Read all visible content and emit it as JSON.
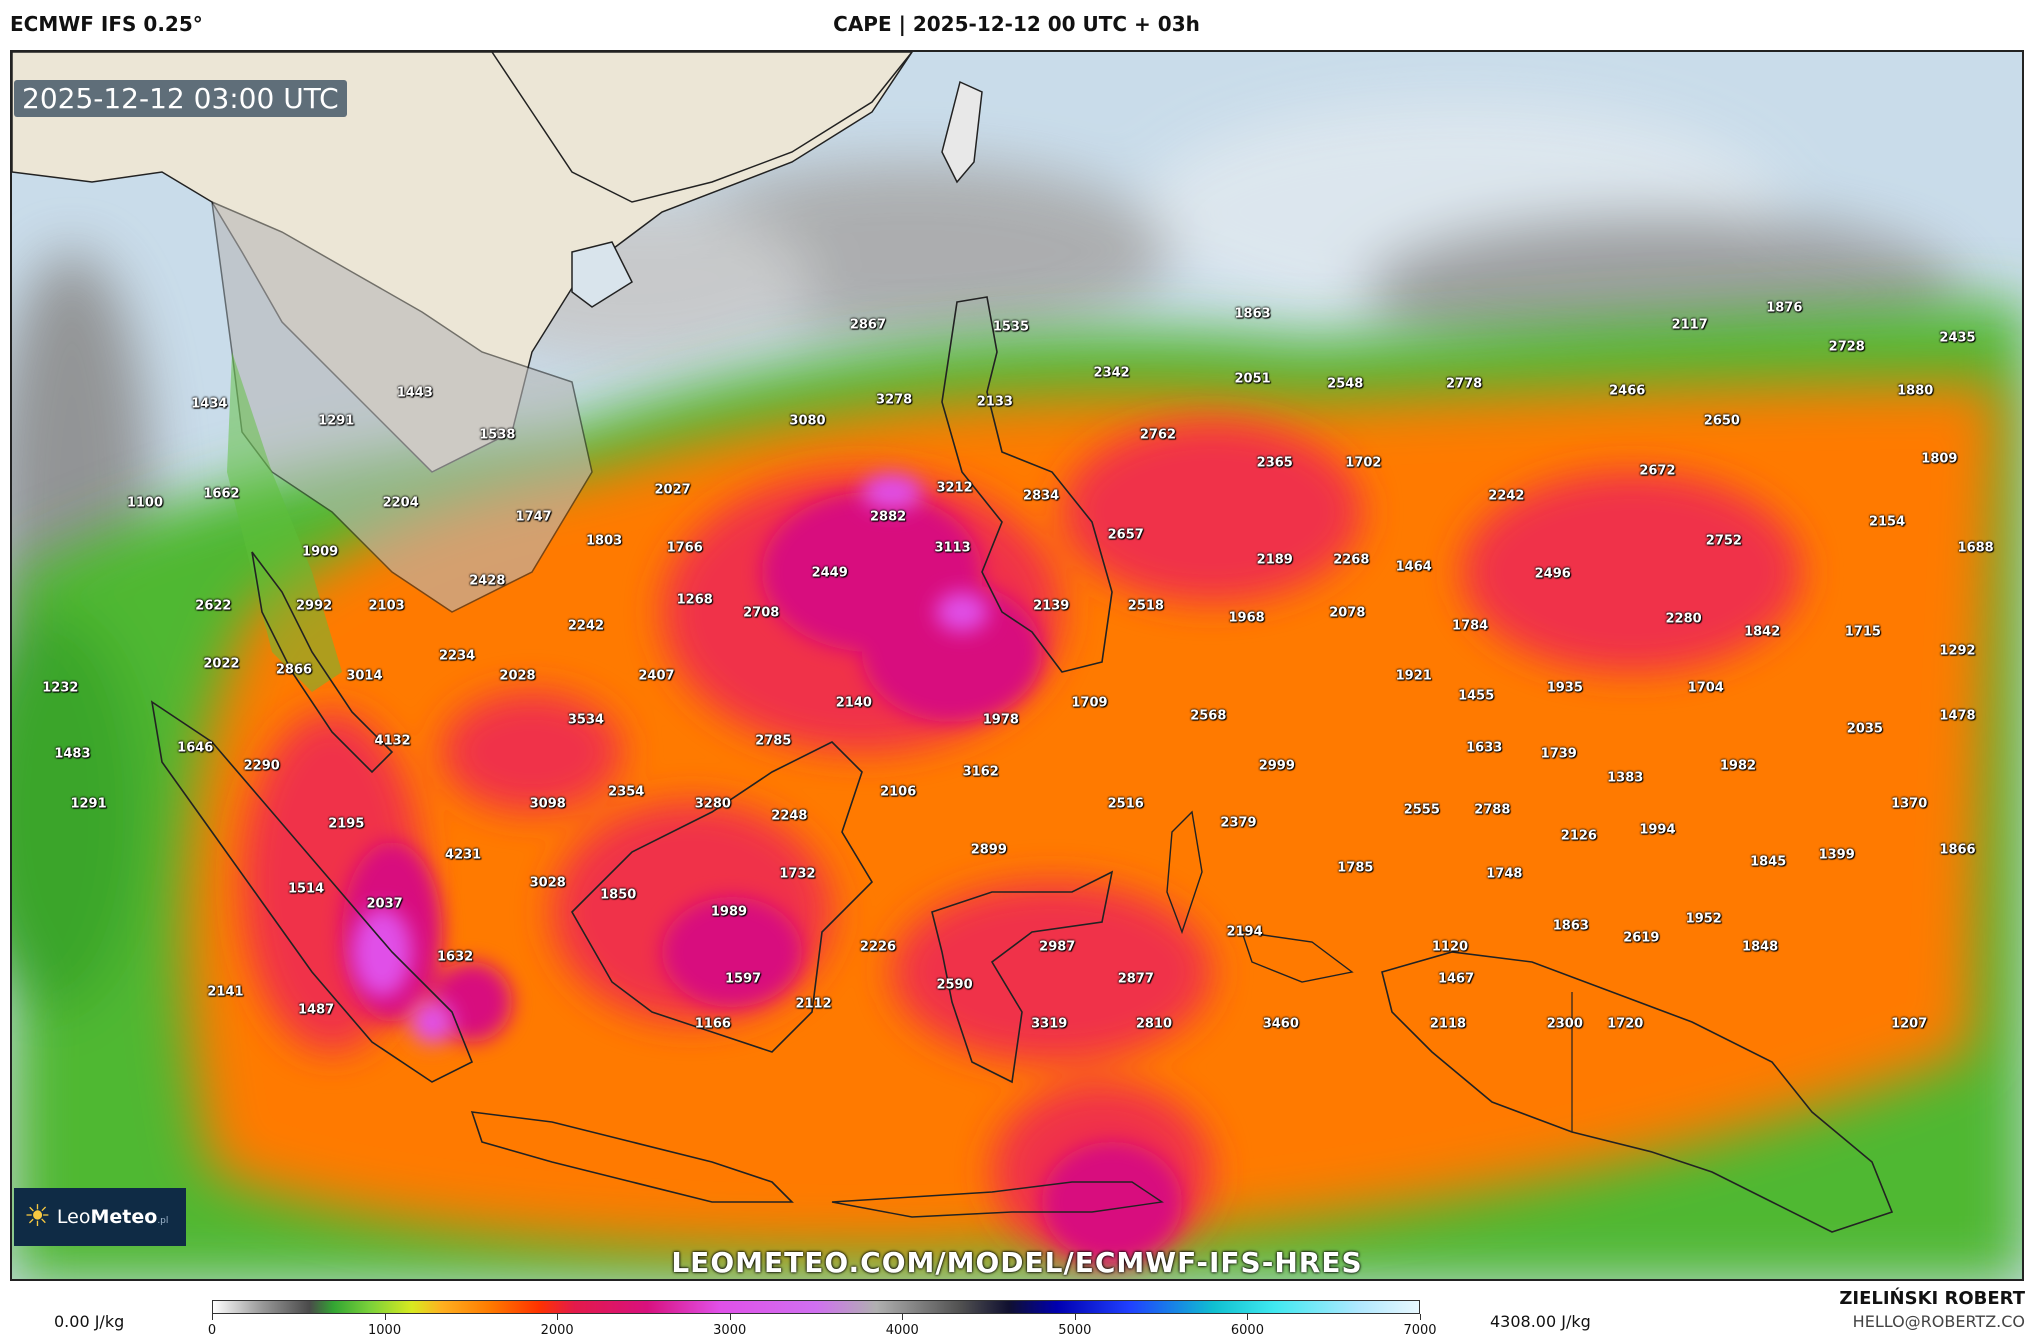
{
  "header": {
    "model": "ECMWF IFS 0.25°",
    "title": "CAPE | 2025-12-12 00 UTC + 03h"
  },
  "map": {
    "timestamp": "2025-12-12 03:00 UTC",
    "watermark": "LEOMETEO.COM/MODEL/ECMWF-IFS-HRES",
    "logo": {
      "brand_light": "Leo",
      "brand_bold": "Meteo",
      "brand_suffix": ".pl"
    },
    "colors": {
      "land_dry": "#ece6d6",
      "sea_low": "#c9dcea",
      "gray_low": "#9e9e9e",
      "green": "#4fb832",
      "orange": "#ff7a00",
      "red": "#f0304a",
      "magenta": "#d8117e",
      "pink": "#e050e8"
    },
    "values": [
      {
        "v": "2867",
        "x": 0.425,
        "y": 0.222
      },
      {
        "v": "1535",
        "x": 0.496,
        "y": 0.223
      },
      {
        "v": "1863",
        "x": 0.616,
        "y": 0.213
      },
      {
        "v": "2117",
        "x": 0.833,
        "y": 0.222
      },
      {
        "v": "1876",
        "x": 0.88,
        "y": 0.208
      },
      {
        "v": "2728",
        "x": 0.911,
        "y": 0.24
      },
      {
        "v": "2435",
        "x": 0.966,
        "y": 0.232
      },
      {
        "v": "1434",
        "x": 0.098,
        "y": 0.286
      },
      {
        "v": "1291",
        "x": 0.161,
        "y": 0.3
      },
      {
        "v": "1443",
        "x": 0.2,
        "y": 0.277
      },
      {
        "v": "3278",
        "x": 0.438,
        "y": 0.283
      },
      {
        "v": "2133",
        "x": 0.488,
        "y": 0.284
      },
      {
        "v": "2342",
        "x": 0.546,
        "y": 0.261
      },
      {
        "v": "2051",
        "x": 0.616,
        "y": 0.266
      },
      {
        "v": "2548",
        "x": 0.662,
        "y": 0.27
      },
      {
        "v": "2778",
        "x": 0.721,
        "y": 0.27
      },
      {
        "v": "2466",
        "x": 0.802,
        "y": 0.275
      },
      {
        "v": "1880",
        "x": 0.945,
        "y": 0.275
      },
      {
        "v": "1538",
        "x": 0.241,
        "y": 0.311
      },
      {
        "v": "3080",
        "x": 0.395,
        "y": 0.3
      },
      {
        "v": "2762",
        "x": 0.569,
        "y": 0.311
      },
      {
        "v": "2650",
        "x": 0.849,
        "y": 0.3
      },
      {
        "v": "2365",
        "x": 0.627,
        "y": 0.334
      },
      {
        "v": "1702",
        "x": 0.671,
        "y": 0.334
      },
      {
        "v": "2672",
        "x": 0.817,
        "y": 0.34
      },
      {
        "v": "1809",
        "x": 0.957,
        "y": 0.331
      },
      {
        "v": "1100",
        "x": 0.066,
        "y": 0.366
      },
      {
        "v": "1662",
        "x": 0.104,
        "y": 0.359
      },
      {
        "v": "2204",
        "x": 0.193,
        "y": 0.366
      },
      {
        "v": "2027",
        "x": 0.328,
        "y": 0.356
      },
      {
        "v": "3212",
        "x": 0.468,
        "y": 0.354
      },
      {
        "v": "2834",
        "x": 0.511,
        "y": 0.361
      },
      {
        "v": "2242",
        "x": 0.742,
        "y": 0.361
      },
      {
        "v": "1747",
        "x": 0.259,
        "y": 0.378
      },
      {
        "v": "2882",
        "x": 0.435,
        "y": 0.378
      },
      {
        "v": "2154",
        "x": 0.931,
        "y": 0.382
      },
      {
        "v": "1909",
        "x": 0.153,
        "y": 0.406
      },
      {
        "v": "1803",
        "x": 0.294,
        "y": 0.397
      },
      {
        "v": "1766",
        "x": 0.334,
        "y": 0.403
      },
      {
        "v": "3113",
        "x": 0.467,
        "y": 0.403
      },
      {
        "v": "2657",
        "x": 0.553,
        "y": 0.392
      },
      {
        "v": "2189",
        "x": 0.627,
        "y": 0.413
      },
      {
        "v": "2268",
        "x": 0.665,
        "y": 0.413
      },
      {
        "v": "1464",
        "x": 0.696,
        "y": 0.418
      },
      {
        "v": "2752",
        "x": 0.85,
        "y": 0.397
      },
      {
        "v": "1688",
        "x": 0.975,
        "y": 0.403
      },
      {
        "v": "2428",
        "x": 0.236,
        "y": 0.43
      },
      {
        "v": "2449",
        "x": 0.406,
        "y": 0.423
      },
      {
        "v": "2496",
        "x": 0.765,
        "y": 0.424
      },
      {
        "v": "2622",
        "x": 0.1,
        "y": 0.45
      },
      {
        "v": "2992",
        "x": 0.15,
        "y": 0.45
      },
      {
        "v": "2103",
        "x": 0.186,
        "y": 0.45
      },
      {
        "v": "1268",
        "x": 0.339,
        "y": 0.445
      },
      {
        "v": "2708",
        "x": 0.372,
        "y": 0.456
      },
      {
        "v": "2139",
        "x": 0.516,
        "y": 0.45
      },
      {
        "v": "2518",
        "x": 0.563,
        "y": 0.45
      },
      {
        "v": "1968",
        "x": 0.613,
        "y": 0.46
      },
      {
        "v": "2078",
        "x": 0.663,
        "y": 0.456
      },
      {
        "v": "2242",
        "x": 0.285,
        "y": 0.466
      },
      {
        "v": "1784",
        "x": 0.724,
        "y": 0.466
      },
      {
        "v": "2280",
        "x": 0.83,
        "y": 0.461
      },
      {
        "v": "1842",
        "x": 0.869,
        "y": 0.471
      },
      {
        "v": "1715",
        "x": 0.919,
        "y": 0.471
      },
      {
        "v": "2022",
        "x": 0.104,
        "y": 0.497
      },
      {
        "v": "2234",
        "x": 0.221,
        "y": 0.491
      },
      {
        "v": "1292",
        "x": 0.966,
        "y": 0.487
      },
      {
        "v": "2866",
        "x": 0.14,
        "y": 0.502
      },
      {
        "v": "3014",
        "x": 0.175,
        "y": 0.507
      },
      {
        "v": "2028",
        "x": 0.251,
        "y": 0.507
      },
      {
        "v": "2407",
        "x": 0.32,
        "y": 0.507
      },
      {
        "v": "1921",
        "x": 0.696,
        "y": 0.507
      },
      {
        "v": "1232",
        "x": 0.024,
        "y": 0.517
      },
      {
        "v": "1455",
        "x": 0.727,
        "y": 0.523
      },
      {
        "v": "1935",
        "x": 0.771,
        "y": 0.517
      },
      {
        "v": "1704",
        "x": 0.841,
        "y": 0.517
      },
      {
        "v": "2140",
        "x": 0.418,
        "y": 0.529
      },
      {
        "v": "1709",
        "x": 0.535,
        "y": 0.529
      },
      {
        "v": "3534",
        "x": 0.285,
        "y": 0.543
      },
      {
        "v": "1978",
        "x": 0.491,
        "y": 0.543
      },
      {
        "v": "2568",
        "x": 0.594,
        "y": 0.539
      },
      {
        "v": "1478",
        "x": 0.966,
        "y": 0.539
      },
      {
        "v": "2035",
        "x": 0.92,
        "y": 0.55
      },
      {
        "v": "4132",
        "x": 0.189,
        "y": 0.56
      },
      {
        "v": "2785",
        "x": 0.378,
        "y": 0.56
      },
      {
        "v": "1646",
        "x": 0.091,
        "y": 0.565
      },
      {
        "v": "1633",
        "x": 0.731,
        "y": 0.565
      },
      {
        "v": "1483",
        "x": 0.03,
        "y": 0.57
      },
      {
        "v": "1739",
        "x": 0.768,
        "y": 0.57
      },
      {
        "v": "2290",
        "x": 0.124,
        "y": 0.58
      },
      {
        "v": "3162",
        "x": 0.481,
        "y": 0.585
      },
      {
        "v": "2999",
        "x": 0.628,
        "y": 0.58
      },
      {
        "v": "1982",
        "x": 0.857,
        "y": 0.58
      },
      {
        "v": "1383",
        "x": 0.801,
        "y": 0.59
      },
      {
        "v": "2354",
        "x": 0.305,
        "y": 0.601
      },
      {
        "v": "2106",
        "x": 0.44,
        "y": 0.601
      },
      {
        "v": "1291",
        "x": 0.038,
        "y": 0.611
      },
      {
        "v": "3098",
        "x": 0.266,
        "y": 0.611
      },
      {
        "v": "3280",
        "x": 0.348,
        "y": 0.611
      },
      {
        "v": "2516",
        "x": 0.553,
        "y": 0.611
      },
      {
        "v": "1370",
        "x": 0.942,
        "y": 0.611
      },
      {
        "v": "2555",
        "x": 0.7,
        "y": 0.616
      },
      {
        "v": "2788",
        "x": 0.735,
        "y": 0.616
      },
      {
        "v": "2248",
        "x": 0.386,
        "y": 0.621
      },
      {
        "v": "2379",
        "x": 0.609,
        "y": 0.626
      },
      {
        "v": "2195",
        "x": 0.166,
        "y": 0.627
      },
      {
        "v": "1994",
        "x": 0.817,
        "y": 0.632
      },
      {
        "v": "2126",
        "x": 0.778,
        "y": 0.637
      },
      {
        "v": "4231",
        "x": 0.224,
        "y": 0.652
      },
      {
        "v": "2899",
        "x": 0.485,
        "y": 0.648
      },
      {
        "v": "1866",
        "x": 0.966,
        "y": 0.648
      },
      {
        "v": "1399",
        "x": 0.906,
        "y": 0.652
      },
      {
        "v": "1845",
        "x": 0.872,
        "y": 0.658
      },
      {
        "v": "1785",
        "x": 0.667,
        "y": 0.663
      },
      {
        "v": "1514",
        "x": 0.146,
        "y": 0.68
      },
      {
        "v": "1732",
        "x": 0.39,
        "y": 0.668
      },
      {
        "v": "1748",
        "x": 0.741,
        "y": 0.668
      },
      {
        "v": "3028",
        "x": 0.266,
        "y": 0.675
      },
      {
        "v": "1850",
        "x": 0.301,
        "y": 0.685
      },
      {
        "v": "2037",
        "x": 0.185,
        "y": 0.692
      },
      {
        "v": "1989",
        "x": 0.356,
        "y": 0.699
      },
      {
        "v": "1952",
        "x": 0.84,
        "y": 0.704
      },
      {
        "v": "1863",
        "x": 0.774,
        "y": 0.71
      },
      {
        "v": "2194",
        "x": 0.612,
        "y": 0.715
      },
      {
        "v": "2619",
        "x": 0.809,
        "y": 0.72
      },
      {
        "v": "2226",
        "x": 0.43,
        "y": 0.727
      },
      {
        "v": "2987",
        "x": 0.519,
        "y": 0.727
      },
      {
        "v": "1120",
        "x": 0.714,
        "y": 0.727
      },
      {
        "v": "1848",
        "x": 0.868,
        "y": 0.727
      },
      {
        "v": "1632",
        "x": 0.22,
        "y": 0.735
      },
      {
        "v": "1597",
        "x": 0.363,
        "y": 0.753
      },
      {
        "v": "2877",
        "x": 0.558,
        "y": 0.753
      },
      {
        "v": "1467",
        "x": 0.717,
        "y": 0.753
      },
      {
        "v": "2590",
        "x": 0.468,
        "y": 0.758
      },
      {
        "v": "2141",
        "x": 0.106,
        "y": 0.764
      },
      {
        "v": "2112",
        "x": 0.398,
        "y": 0.773
      },
      {
        "v": "1487",
        "x": 0.151,
        "y": 0.778
      },
      {
        "v": "1166",
        "x": 0.348,
        "y": 0.79
      },
      {
        "v": "3319",
        "x": 0.515,
        "y": 0.79
      },
      {
        "v": "2810",
        "x": 0.567,
        "y": 0.79
      },
      {
        "v": "3460",
        "x": 0.63,
        "y": 0.79
      },
      {
        "v": "2118",
        "x": 0.713,
        "y": 0.79
      },
      {
        "v": "2300",
        "x": 0.771,
        "y": 0.79
      },
      {
        "v": "1720",
        "x": 0.801,
        "y": 0.79
      },
      {
        "v": "1207",
        "x": 0.942,
        "y": 0.79
      }
    ]
  },
  "legend": {
    "min_label": "0.00 J/kg",
    "max_label": "4308.00 J/kg",
    "ticks": [
      "0",
      "1000",
      "2000",
      "3000",
      "4000",
      "5000",
      "6000",
      "7000"
    ]
  },
  "footer": {
    "author": "ZIELIŃSKI ROBERT",
    "email": "HELLO@ROBERTZ.CO"
  }
}
